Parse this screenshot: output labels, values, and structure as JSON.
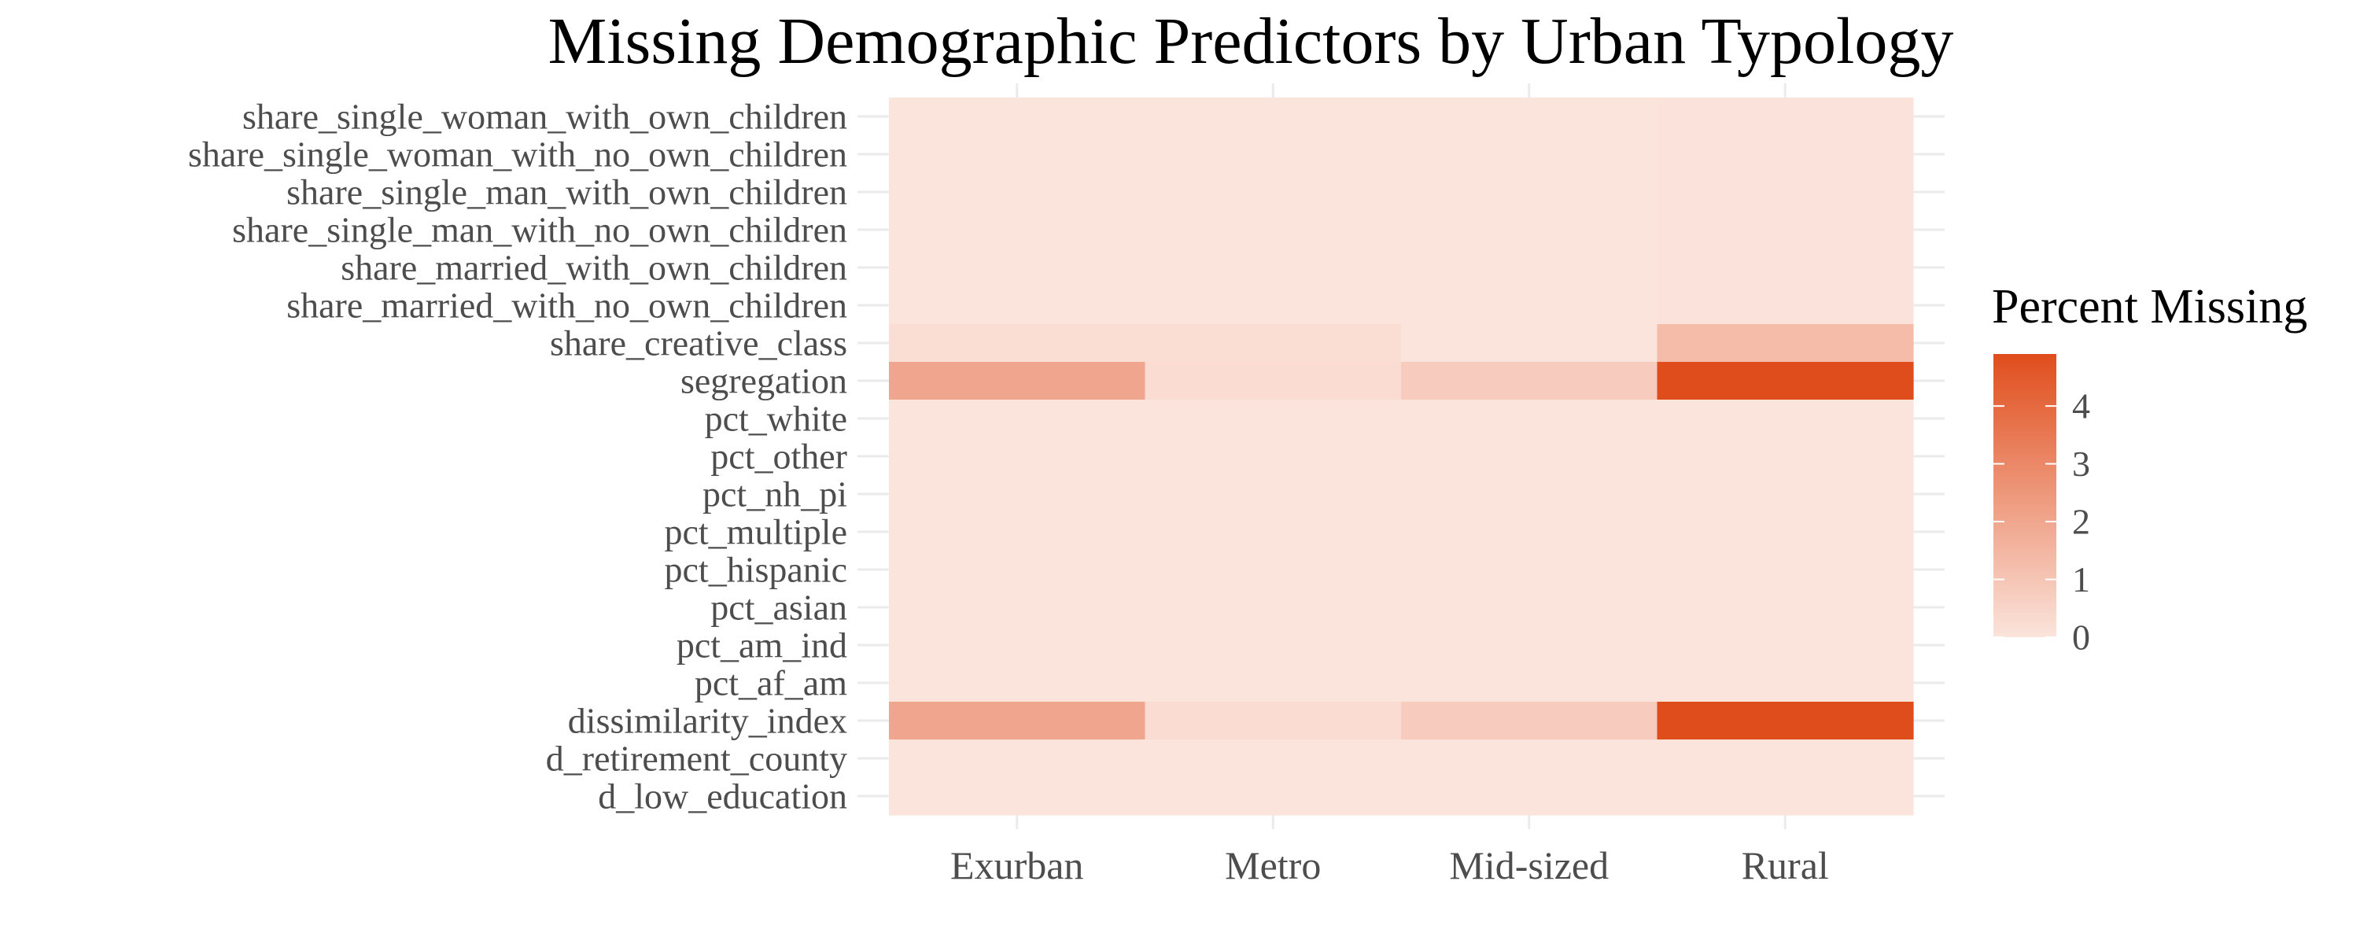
{
  "chart_data": {
    "type": "heatmap",
    "title": "Missing Demographic Predictors by Urban Typology",
    "xlabel": "",
    "ylabel": "",
    "x_categories": [
      "Exurban",
      "Metro",
      "Mid-sized",
      "Rural"
    ],
    "y_categories": [
      "share_single_woman_with_own_children",
      "share_single_woman_with_no_own_children",
      "share_single_man_with_own_children",
      "share_single_man_with_no_own_children",
      "share_married_with_own_children",
      "share_married_with_no_own_children",
      "share_creative_class",
      "segregation",
      "pct_white",
      "pct_other",
      "pct_nh_pi",
      "pct_multiple",
      "pct_hispanic",
      "pct_asian",
      "pct_am_ind",
      "pct_af_am",
      "dissimilarity_index",
      "d_retirement_county",
      "d_low_education"
    ],
    "values": [
      [
        0,
        0,
        0,
        0.03
      ],
      [
        0,
        0,
        0,
        0.03
      ],
      [
        0,
        0,
        0,
        0.03
      ],
      [
        0,
        0,
        0,
        0.03
      ],
      [
        0,
        0,
        0,
        0.03
      ],
      [
        0,
        0,
        0,
        0.03
      ],
      [
        0.2,
        0.2,
        0,
        1.3
      ],
      [
        2.0,
        0.25,
        0.8,
        4.9
      ],
      [
        0,
        0,
        0,
        0
      ],
      [
        0,
        0,
        0,
        0
      ],
      [
        0,
        0,
        0,
        0
      ],
      [
        0,
        0,
        0,
        0
      ],
      [
        0,
        0,
        0,
        0
      ],
      [
        0,
        0,
        0,
        0
      ],
      [
        0,
        0,
        0,
        0
      ],
      [
        0,
        0,
        0,
        0
      ],
      [
        2.0,
        0.25,
        0.8,
        4.9
      ],
      [
        0,
        0,
        0,
        0
      ],
      [
        0,
        0,
        0,
        0
      ]
    ],
    "legend": {
      "title": "Percent Missing",
      "ticks": [
        0,
        1,
        2,
        3,
        4
      ],
      "range": [
        0,
        4.9
      ],
      "low_color": "#fbe4dc",
      "high_color": "#e04d1c",
      "position": "right"
    },
    "grid": true
  }
}
